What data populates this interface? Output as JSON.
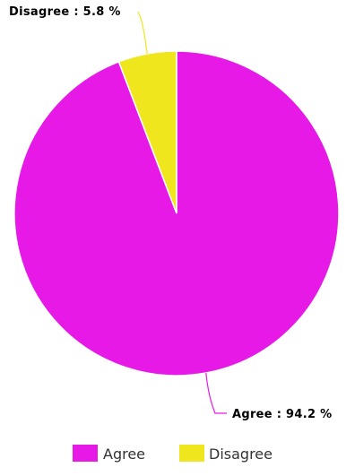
{
  "chart_data": {
    "type": "pie",
    "series": [
      {
        "name": "Agree",
        "value": 94.2,
        "label": "Agree : 94.2 %",
        "color": "#e619e6"
      },
      {
        "name": "Disagree",
        "value": 5.8,
        "label": "Disagree : 5.8 %",
        "color": "#f0e61e"
      }
    ],
    "start_angle": "12 o'clock",
    "direction": "clockwise",
    "legend": {
      "placement": "bottom-center",
      "items": [
        "Agree",
        "Disagree"
      ]
    },
    "data_labels": "outside-with-leader-lines"
  }
}
